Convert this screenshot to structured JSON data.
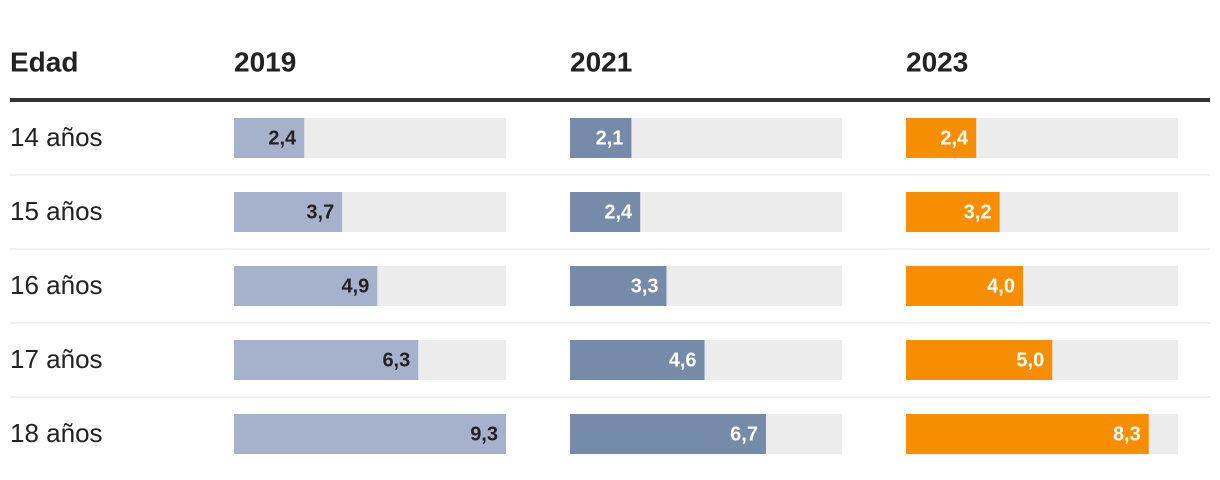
{
  "chart_data": {
    "type": "table-bars",
    "category_header": "Edad",
    "categories": [
      "14 años",
      "15 años",
      "16 años",
      "17 años",
      "18 años"
    ],
    "xlim": [
      0,
      9.3
    ],
    "series": [
      {
        "name": "2019",
        "color": "#a6b1cb",
        "label_color": "#222222",
        "values": [
          2.4,
          3.7,
          4.9,
          6.3,
          9.3
        ],
        "value_labels": [
          "2,4",
          "3,7",
          "4,9",
          "6,3",
          "9,3"
        ]
      },
      {
        "name": "2021",
        "color": "#768ba9",
        "label_color": "#ffffff",
        "values": [
          2.1,
          2.4,
          3.3,
          4.6,
          6.7
        ],
        "value_labels": [
          "2,1",
          "2,4",
          "3,3",
          "4,6",
          "6,7"
        ]
      },
      {
        "name": "2023",
        "color": "#f78d00",
        "label_color": "#ffffff",
        "values": [
          2.4,
          3.2,
          4.0,
          5.0,
          8.3
        ],
        "value_labels": [
          "2,4",
          "3,2",
          "4,0",
          "5,0",
          "8,3"
        ]
      }
    ]
  }
}
